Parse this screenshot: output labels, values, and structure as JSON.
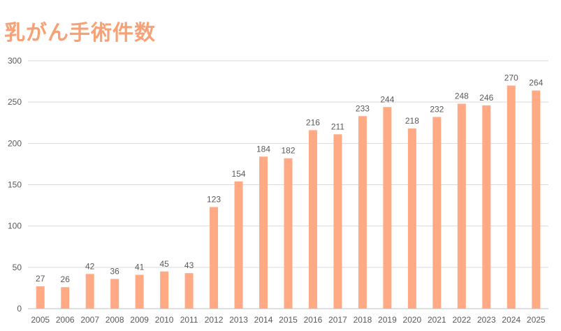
{
  "chart_data": {
    "type": "bar",
    "title": "乳がん手術件数",
    "categories": [
      "2005",
      "2006",
      "2007",
      "2008",
      "2009",
      "2010",
      "2011",
      "2012",
      "2013",
      "2014",
      "2015",
      "2016",
      "2017",
      "2018",
      "2019",
      "2020",
      "2021",
      "2022",
      "2023",
      "2024",
      "2025"
    ],
    "values": [
      27,
      26,
      42,
      36,
      41,
      45,
      43,
      123,
      154,
      184,
      182,
      216,
      211,
      233,
      244,
      218,
      232,
      248,
      246,
      270,
      264
    ],
    "ylim": [
      0,
      300
    ],
    "yticks": [
      0,
      50,
      100,
      150,
      200,
      250,
      300
    ],
    "grid": true,
    "bar_color": "#FFAA85",
    "title_color": "#F7A276"
  }
}
